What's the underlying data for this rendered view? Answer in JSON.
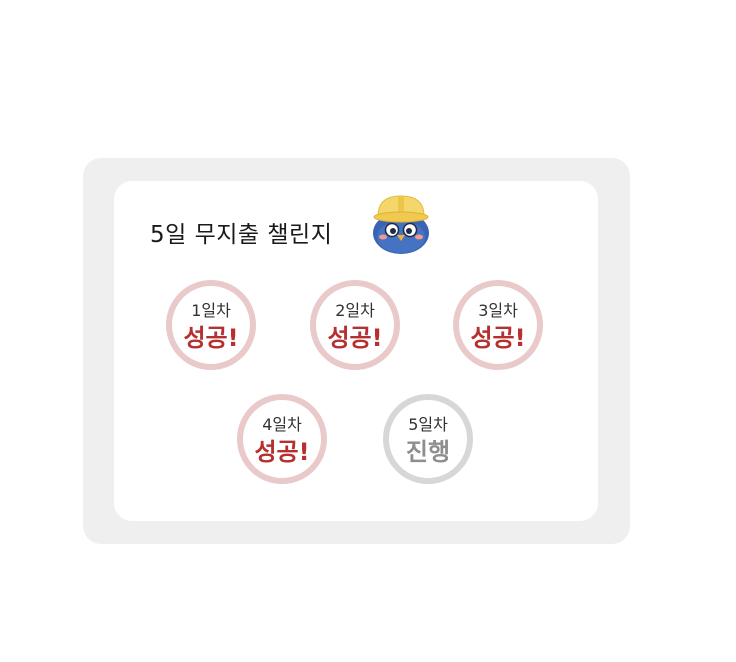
{
  "challenge": {
    "title": "5일 무지출 챌린지",
    "days": [
      {
        "day_label": "1일차",
        "status_label": "성공!",
        "state": "success"
      },
      {
        "day_label": "2일차",
        "status_label": "성공!",
        "state": "success"
      },
      {
        "day_label": "3일차",
        "status_label": "성공!",
        "state": "success"
      },
      {
        "day_label": "4일차",
        "status_label": "성공!",
        "state": "success"
      },
      {
        "day_label": "5일차",
        "status_label": "진행",
        "state": "in-progress"
      }
    ]
  },
  "colors": {
    "success_ring": "#e9c9c9",
    "success_text": "#b5302f",
    "progress_ring": "#d7d7d7",
    "progress_text": "#8e8e8e",
    "card_outer": "#efefef",
    "card_inner": "#ffffff"
  },
  "icons": {
    "mascot": "bird-with-hard-hat-icon"
  }
}
